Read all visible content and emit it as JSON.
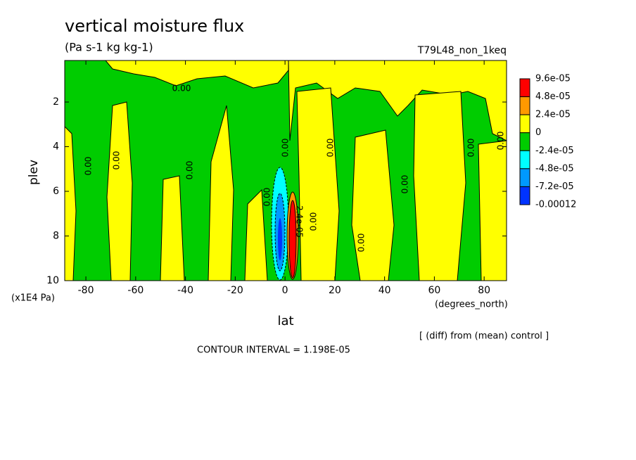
{
  "chart_data": {
    "type": "contour",
    "title": "vertical moisture flux",
    "subtitle": "(Pa s-1 kg kg-1)",
    "dataset": "T79L48_non_1keq",
    "xlabel": "lat",
    "xunits": "(degrees_north)",
    "ylabel": "plev",
    "yunits": "(x1E4 Pa)",
    "xlim": [
      -88.5,
      89
    ],
    "xticks": [
      -80,
      -60,
      -40,
      -20,
      0,
      20,
      40,
      60,
      80
    ],
    "ylim": [
      0.14,
      10
    ],
    "y_inverted": true,
    "yticks": [
      2,
      4,
      6,
      8,
      10
    ],
    "grid": false,
    "levels": [
      {
        "value": 9.6e-05,
        "label": "9.6e-05"
      },
      {
        "value": 4.8e-05,
        "label": "4.8e-05"
      },
      {
        "value": 2.4e-05,
        "label": "2.4e-05"
      },
      0,
      {
        "value": -2.4e-05,
        "label": "-2.4e-05"
      },
      {
        "value": -4.8e-05,
        "label": "-4.8e-05"
      },
      {
        "value": -7.2e-05,
        "label": "-7.2e-05"
      },
      {
        "value": -0.00012,
        "label": "-0.00012"
      }
    ],
    "level_colors": [
      "#ff0000",
      "#ff9900",
      "#ffff00",
      "#00cc00",
      "#00ffff",
      "#0099ff",
      "#0033ff"
    ],
    "contour_labels": [
      "0.00",
      "0.00",
      "0.00",
      "0.00",
      "0.00",
      "0.00",
      "0.00",
      "0.00",
      "0.00",
      "0.00",
      "0.00",
      "0.00",
      "2.4e-05"
    ],
    "note": "[ (diff) from (mean) control ]",
    "contour_interval": "CONTOUR INTERVAL = 1.198E-05"
  }
}
